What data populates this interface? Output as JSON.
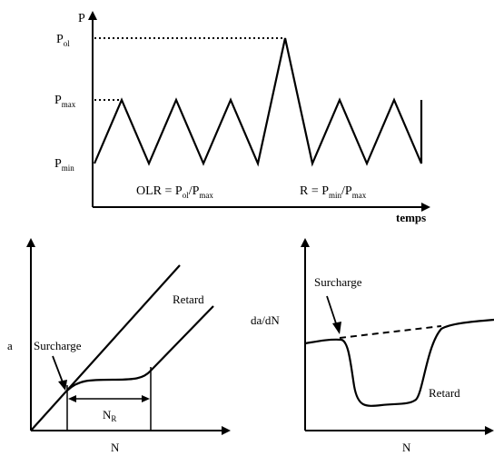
{
  "top_panel": {
    "y_axis_label": "P",
    "x_axis_label": "temps",
    "levels": {
      "p_ol": {
        "main": "P",
        "sub": "ol"
      },
      "p_max": {
        "main": "P",
        "sub": "max"
      },
      "p_min": {
        "main": "P",
        "sub": "min"
      }
    },
    "formula_olr": {
      "lhs": "OLR = P",
      "sub1": "ol",
      "mid": "/P",
      "sub2": "max"
    },
    "formula_r": {
      "lhs": "R = P",
      "sub1": "min",
      "mid": "/P",
      "sub2": "max"
    }
  },
  "bottom_left_panel": {
    "y_axis_label": "a",
    "x_axis_label": "N",
    "surcharge_label": "Surcharge",
    "retard_label": "Retard",
    "nr_label": {
      "main": "N",
      "sub": "R"
    }
  },
  "bottom_right_panel": {
    "y_axis_label": "da/dN",
    "x_axis_label": "N",
    "surcharge_label": "Surcharge",
    "retard_label": "Retard"
  }
}
